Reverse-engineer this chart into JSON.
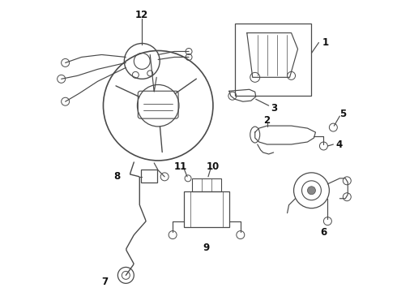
{
  "bg_color": "#ffffff",
  "line_color": "#4a4a4a",
  "text_color": "#111111",
  "figsize": [
    4.9,
    3.6
  ],
  "dpi": 100,
  "lw_main": 0.85,
  "lw_thin": 0.6,
  "label_fontsize": 8.5
}
